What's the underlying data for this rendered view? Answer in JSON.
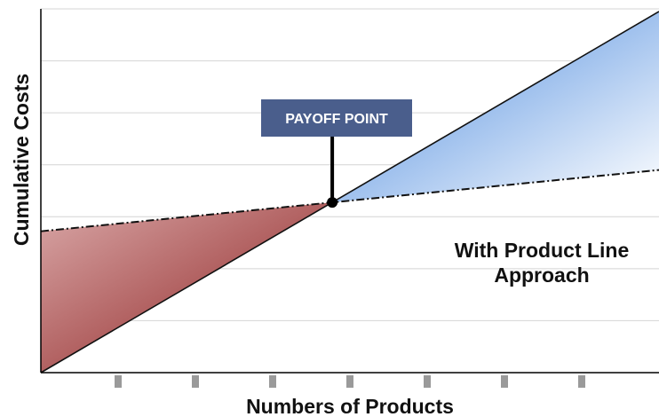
{
  "chart_data": {
    "type": "line",
    "xlabel": "Numbers of Products",
    "ylabel": "Cumulative Costs",
    "xlim": [
      0,
      8
    ],
    "ylim": [
      0,
      7
    ],
    "x_ticks": [
      1,
      2,
      3,
      4,
      5,
      6,
      7
    ],
    "grid": {
      "horizontal": true,
      "vertical": false
    },
    "series": [
      {
        "style": "solid",
        "color": "#111111",
        "x": [
          0,
          8
        ],
        "y": [
          0,
          6.95
        ]
      },
      {
        "style": "dash-dot",
        "color": "#111111",
        "x": [
          0,
          8
        ],
        "y": [
          2.72,
          3.9
        ]
      }
    ],
    "regions": [
      {
        "between": "before-payoff",
        "gradient": [
          "#d9a8a8",
          "#8a1a1a"
        ]
      },
      {
        "between": "after-payoff",
        "gradient": [
          "#3f82dc",
          "#ffffff"
        ]
      }
    ],
    "annotations": {
      "payoff_label": "PAYOFF POINT",
      "payoff_box_color": "#4a5e8c",
      "approach_line1": "With Product Line",
      "approach_line2": "Approach"
    }
  }
}
